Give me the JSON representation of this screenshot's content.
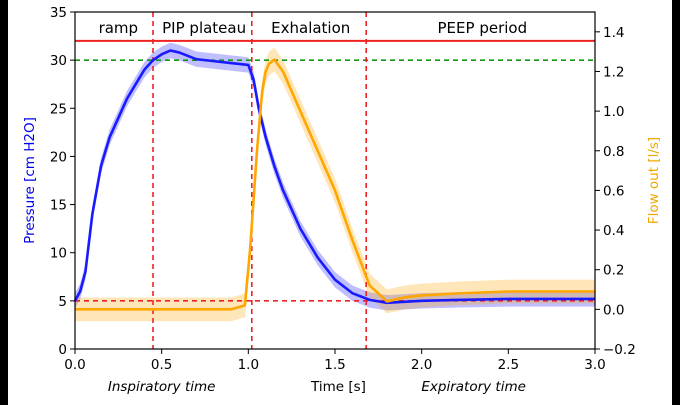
{
  "chart_data": {
    "type": "line",
    "title": "",
    "xlabel": "Time [s]",
    "ylabel": "Pressure [cm H2O]",
    "ylabel_right": "Flow out [l/s]",
    "xlim": [
      0,
      3.0
    ],
    "ylim": [
      0,
      35
    ],
    "ylim_right": [
      -0.2,
      1.5
    ],
    "x_ticks": [
      "0.0",
      "0.5",
      "1.0",
      "1.5",
      "2.0",
      "2.5",
      "3.0"
    ],
    "x_tick_values": [
      0,
      0.5,
      1.0,
      1.5,
      2.0,
      2.5,
      3.0
    ],
    "y_ticks": [
      "0",
      "5",
      "10",
      "15",
      "20",
      "25",
      "30",
      "35"
    ],
    "y_tick_values": [
      0,
      5,
      10,
      15,
      20,
      25,
      30,
      35
    ],
    "y_right_ticks": [
      "−0.2",
      "0.0",
      "0.2",
      "0.4",
      "0.6",
      "0.8",
      "1.0",
      "1.2",
      "1.4"
    ],
    "y_right_tick_values": [
      -0.2,
      0,
      0.2,
      0.4,
      0.6,
      0.8,
      1.0,
      1.2,
      1.4
    ],
    "phase_labels": [
      {
        "label": "ramp",
        "x": 0.25
      },
      {
        "label": "PIP plateau",
        "x": 0.745
      },
      {
        "label": "Exhalation",
        "x": 1.36
      },
      {
        "label": "PEEP period",
        "x": 2.35
      }
    ],
    "annotations_below": [
      {
        "label": "Inspiratory time",
        "x": 0.5
      },
      {
        "label": "Expiratory time",
        "x": 2.3
      }
    ],
    "vertical_lines": [
      0.45,
      1.02,
      1.68
    ],
    "horizontal_lines": [
      {
        "name": "upper-limit",
        "axis": "left",
        "y": 32,
        "color": "#ee2222",
        "style": "solid"
      },
      {
        "name": "plateau-target",
        "axis": "left",
        "y": 30,
        "color": "#119911",
        "style": "dashed"
      },
      {
        "name": "peep-level",
        "axis": "left",
        "y": 5,
        "color": "#ee2222",
        "style": "dashed"
      }
    ],
    "series": [
      {
        "name": "Pressure",
        "axis": "left",
        "color": "#1a1aff",
        "band": 0.8,
        "x": [
          0,
          0.03,
          0.06,
          0.1,
          0.15,
          0.2,
          0.25,
          0.3,
          0.35,
          0.4,
          0.45,
          0.5,
          0.55,
          0.6,
          0.7,
          0.8,
          0.9,
          1.0,
          1.03,
          1.06,
          1.1,
          1.15,
          1.2,
          1.3,
          1.4,
          1.5,
          1.6,
          1.7,
          1.8,
          1.9,
          2.0,
          2.2,
          2.5,
          2.8,
          3.0
        ],
        "values": [
          5,
          6,
          8,
          14,
          19,
          22,
          24,
          26,
          27.5,
          29,
          30,
          30.6,
          31,
          30.8,
          30.1,
          29.9,
          29.7,
          29.5,
          28,
          25,
          22,
          19,
          16.5,
          12.5,
          9.5,
          7.2,
          5.8,
          5.1,
          4.8,
          4.9,
          5,
          5.1,
          5.2,
          5.2,
          5.2
        ]
      },
      {
        "name": "Flow out",
        "axis": "right",
        "color": "#ffa600",
        "band": 0.06,
        "x": [
          0,
          0.5,
          0.9,
          0.98,
          1.01,
          1.05,
          1.08,
          1.1,
          1.12,
          1.15,
          1.2,
          1.3,
          1.4,
          1.5,
          1.6,
          1.7,
          1.8,
          1.85,
          1.9,
          2.0,
          2.2,
          2.5,
          2.8,
          3.0
        ],
        "values": [
          0,
          0,
          0,
          0.02,
          0.3,
          0.8,
          1.1,
          1.2,
          1.24,
          1.26,
          1.2,
          1.0,
          0.8,
          0.6,
          0.35,
          0.12,
          0.04,
          0.05,
          0.06,
          0.07,
          0.08,
          0.09,
          0.09,
          0.09
        ]
      }
    ]
  }
}
